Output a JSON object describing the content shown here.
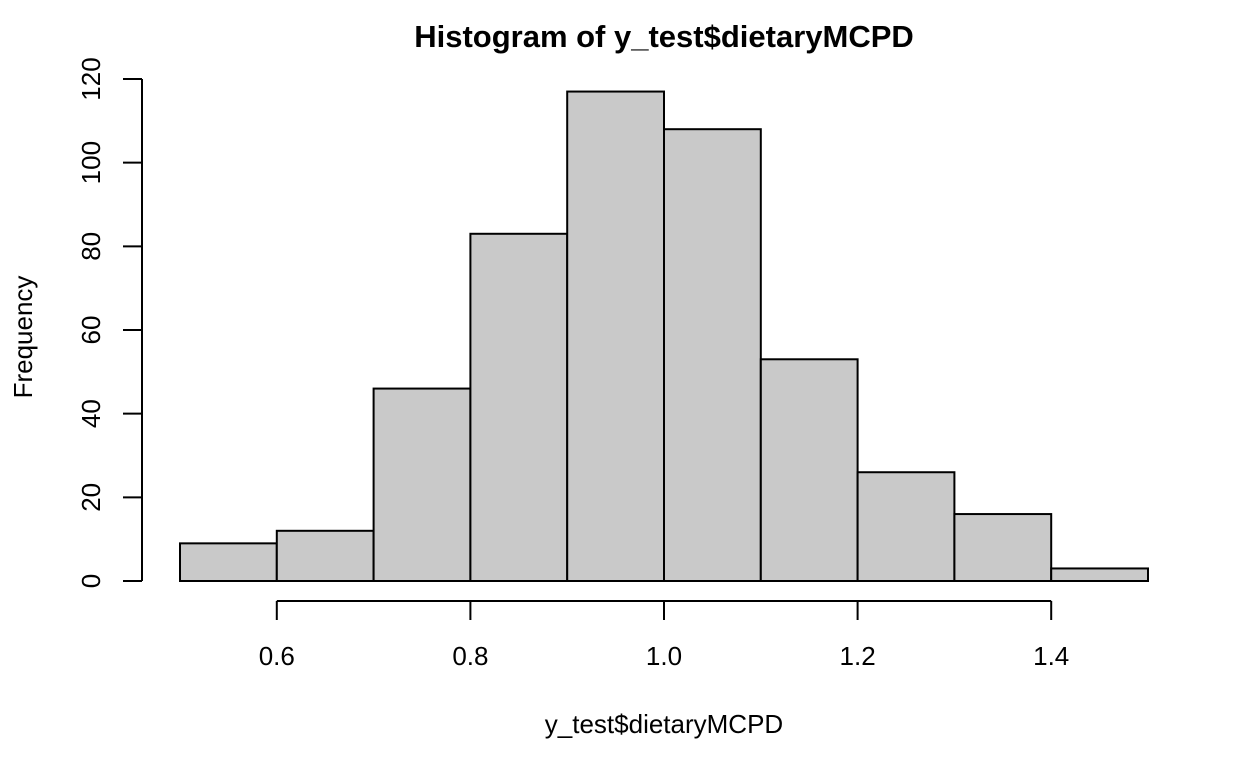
{
  "chart_data": {
    "type": "bar",
    "subtype": "histogram",
    "title": "Histogram of y_test$dietaryMCPD",
    "xlabel": "y_test$dietaryMCPD",
    "ylabel": "Frequency",
    "bins": [
      {
        "x0": 0.5,
        "x1": 0.6,
        "count": 9
      },
      {
        "x0": 0.6,
        "x1": 0.7,
        "count": 12
      },
      {
        "x0": 0.7,
        "x1": 0.8,
        "count": 46
      },
      {
        "x0": 0.8,
        "x1": 0.9,
        "count": 83
      },
      {
        "x0": 0.9,
        "x1": 1.0,
        "count": 117
      },
      {
        "x0": 1.0,
        "x1": 1.1,
        "count": 108
      },
      {
        "x0": 1.1,
        "x1": 1.2,
        "count": 53
      },
      {
        "x0": 1.2,
        "x1": 1.3,
        "count": 26
      },
      {
        "x0": 1.3,
        "x1": 1.4,
        "count": 16
      },
      {
        "x0": 1.4,
        "x1": 1.5,
        "count": 3
      }
    ],
    "xlim": [
      0.5,
      1.5
    ],
    "ylim": [
      0,
      120
    ],
    "x_ticks": [
      0.6,
      0.8,
      1.0,
      1.2,
      1.4
    ],
    "x_tick_labels": [
      "0.6",
      "0.8",
      "1.0",
      "1.2",
      "1.4"
    ],
    "y_ticks": [
      0,
      20,
      40,
      60,
      80,
      100,
      120
    ],
    "y_tick_labels": [
      "0",
      "20",
      "40",
      "60",
      "80",
      "100",
      "120"
    ],
    "grid": false,
    "legend": "none",
    "bar_fill": "#c9c9c9",
    "bar_stroke": "#000000",
    "background": "#ffffff"
  }
}
